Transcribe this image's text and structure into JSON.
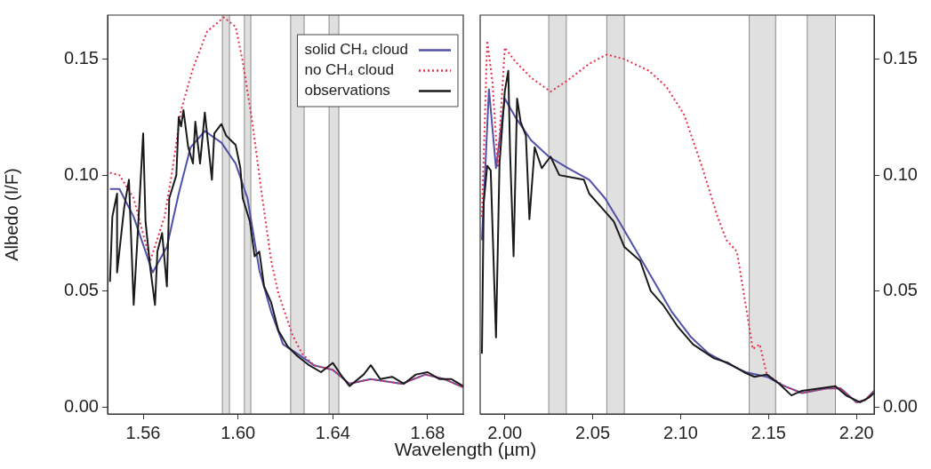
{
  "chart_data": [
    {
      "type": "line",
      "ylabel": "Albedo (I/F)",
      "xlabel": "Wavelength (µm)",
      "legend": "top right",
      "xlim": [
        1.545,
        1.695
      ],
      "xticks": [
        {
          "value": 1.56,
          "label": "1.56"
        },
        {
          "value": 1.6,
          "label": "1.60"
        },
        {
          "value": 1.64,
          "label": "1.64"
        },
        {
          "value": 1.68,
          "label": "1.68"
        }
      ],
      "ylim": [
        -0.003,
        0.169
      ],
      "yticks": [
        {
          "value": 0,
          "label": "0.00"
        },
        {
          "value": 0.05,
          "label": "0.05"
        },
        {
          "value": 0.1,
          "label": "0.10"
        },
        {
          "value": 0.15,
          "label": "0.15"
        }
      ],
      "bands": [
        {
          "axis": "x",
          "from": 1.5934,
          "to": 1.5964,
          "color": "#e0e0e0"
        },
        {
          "axis": "x",
          "from": 1.6027,
          "to": 1.6054,
          "color": "#e0e0e0"
        },
        {
          "axis": "x",
          "from": 1.6222,
          "to": 1.6279,
          "color": "#e0e0e0"
        },
        {
          "axis": "x",
          "from": 1.6384,
          "to": 1.6425,
          "color": "#e0e0e0"
        }
      ],
      "series": [
        {
          "name": "observations",
          "color": "#1a1a1a",
          "line_style": "solid",
          "x": [
            1.546,
            1.547,
            1.549,
            1.549,
            1.552,
            1.554,
            1.556,
            1.558,
            1.56,
            1.561,
            1.563,
            1.565,
            1.566,
            1.568,
            1.57,
            1.571,
            1.574,
            1.575,
            1.576,
            1.577,
            1.579,
            1.581,
            1.582,
            1.584,
            1.586,
            1.589,
            1.59,
            1.593,
            1.595,
            1.597,
            1.599,
            1.601,
            1.602,
            1.605,
            1.607,
            1.609,
            1.611,
            1.614,
            1.617,
            1.621,
            1.625,
            1.63,
            1.635,
            1.64,
            1.644,
            1.647,
            1.653,
            1.656,
            1.66,
            1.665,
            1.67,
            1.675,
            1.68,
            1.685,
            1.69,
            1.695
          ],
          "values": [
            0.054,
            0.082,
            0.092,
            0.058,
            0.086,
            0.098,
            0.044,
            0.08,
            0.118,
            0.08,
            0.06,
            0.044,
            0.067,
            0.075,
            0.052,
            0.09,
            0.1,
            0.125,
            0.121,
            0.128,
            0.112,
            0.105,
            0.123,
            0.105,
            0.127,
            0.098,
            0.118,
            0.122,
            0.117,
            0.115,
            0.113,
            0.103,
            0.09,
            0.08,
            0.065,
            0.067,
            0.052,
            0.045,
            0.033,
            0.026,
            0.022,
            0.018,
            0.015,
            0.019,
            0.013,
            0.009,
            0.014,
            0.018,
            0.012,
            0.013,
            0.01,
            0.014,
            0.015,
            0.012,
            0.012,
            0.009
          ]
        },
        {
          "name": "no CH₄ cloud",
          "color": "#e8304a",
          "line_style": "dotted",
          "x": [
            1.546,
            1.55,
            1.556,
            1.563,
            1.569,
            1.572,
            1.576,
            1.581,
            1.587,
            1.594,
            1.599,
            1.602,
            1.606,
            1.61,
            1.614,
            1.617,
            1.623,
            1.627,
            1.632,
            1.64,
            1.647,
            1.656,
            1.669,
            1.679,
            1.687,
            1.695
          ],
          "values": [
            0.101,
            0.1,
            0.09,
            0.063,
            0.082,
            0.1,
            0.128,
            0.146,
            0.162,
            0.168,
            0.164,
            0.149,
            0.123,
            0.092,
            0.063,
            0.049,
            0.031,
            0.023,
            0.018,
            0.016,
            0.01,
            0.012,
            0.01,
            0.014,
            0.012,
            0.0085
          ]
        },
        {
          "name": "solid CH₄ cloud",
          "color": "#5050a8",
          "line_style": "solid",
          "x": [
            1.546,
            1.55,
            1.556,
            1.564,
            1.57,
            1.575,
            1.58,
            1.586,
            1.593,
            1.599,
            1.604,
            1.609,
            1.614,
            1.619,
            1.625,
            1.632,
            1.64,
            1.647,
            1.656,
            1.669,
            1.679,
            1.687,
            1.695
          ],
          "values": [
            0.094,
            0.094,
            0.082,
            0.058,
            0.069,
            0.092,
            0.112,
            0.119,
            0.114,
            0.105,
            0.09,
            0.059,
            0.041,
            0.027,
            0.023,
            0.018,
            0.016,
            0.01,
            0.012,
            0.01,
            0.014,
            0.012,
            0.0085
          ]
        }
      ]
    },
    {
      "type": "line",
      "xlim": [
        1.986,
        2.21
      ],
      "xticks": [
        {
          "value": 2,
          "label": "2.00"
        },
        {
          "value": 2.05,
          "label": "2.05"
        },
        {
          "value": 2.1,
          "label": "2.10"
        },
        {
          "value": 2.15,
          "label": "2.15"
        },
        {
          "value": 2.2,
          "label": "2.20"
        }
      ],
      "ylim": [
        -0.003,
        0.169
      ],
      "yticks": [
        {
          "value": 0,
          "label": "0.00"
        },
        {
          "value": 0.05,
          "label": "0.05"
        },
        {
          "value": 0.1,
          "label": "0.10"
        },
        {
          "value": 0.15,
          "label": "0.15"
        }
      ],
      "bands": [
        {
          "axis": "x",
          "from": 2.025,
          "to": 2.035,
          "color": "#e0e0e0"
        },
        {
          "axis": "x",
          "from": 2.058,
          "to": 2.068,
          "color": "#e0e0e0"
        },
        {
          "axis": "x",
          "from": 2.139,
          "to": 2.154,
          "color": "#e0e0e0"
        },
        {
          "axis": "x",
          "from": 2.172,
          "to": 2.188,
          "color": "#e0e0e0"
        }
      ],
      "series": [
        {
          "color": "#1a1a1a",
          "line_style": "solid",
          "x": [
            1.987,
            1.988,
            1.99,
            1.992,
            1.995,
            1.997,
            2.0,
            2.002,
            2.003,
            2.005,
            2.007,
            2.009,
            2.012,
            2.014,
            2.017,
            2.021,
            2.026,
            2.031,
            2.038,
            2.045,
            2.048,
            2.055,
            2.062,
            2.068,
            2.077,
            2.083,
            2.09,
            2.098,
            2.107,
            2.119,
            2.127,
            2.136,
            2.142,
            2.149,
            2.156,
            2.163,
            2.169,
            2.179,
            2.188,
            2.194,
            2.202,
            2.207,
            2.21
          ],
          "values": [
            0.023,
            0.088,
            0.104,
            0.102,
            0.03,
            0.105,
            0.136,
            0.145,
            0.11,
            0.065,
            0.133,
            0.123,
            0.117,
            0.081,
            0.112,
            0.103,
            0.108,
            0.1,
            0.099,
            0.098,
            0.092,
            0.086,
            0.08,
            0.069,
            0.063,
            0.05,
            0.044,
            0.035,
            0.027,
            0.021,
            0.019,
            0.015,
            0.013,
            0.014,
            0.01,
            0.005,
            0.007,
            0.008,
            0.009,
            0.005,
            0.002,
            0.004,
            0.006
          ]
        },
        {
          "color": "#e8304a",
          "line_style": "dotted",
          "x": [
            1.987,
            1.99,
            1.993,
            1.996,
            2.0,
            2.006,
            2.015,
            2.026,
            2.036,
            2.048,
            2.058,
            2.068,
            2.082,
            2.092,
            2.102,
            2.112,
            2.121,
            2.126,
            2.132,
            2.137,
            2.141,
            2.145,
            2.149,
            2.159,
            2.169,
            2.183,
            2.191,
            2.2,
            2.205,
            2.21
          ],
          "values": [
            0.082,
            0.158,
            0.14,
            0.104,
            0.155,
            0.149,
            0.142,
            0.136,
            0.141,
            0.148,
            0.152,
            0.15,
            0.145,
            0.138,
            0.126,
            0.104,
            0.082,
            0.072,
            0.067,
            0.044,
            0.025,
            0.027,
            0.014,
            0.009,
            0.006,
            0.008,
            0.008,
            0.002,
            0.003,
            0.007
          ]
        },
        {
          "color": "#5050a8",
          "line_style": "solid",
          "x": [
            1.987,
            1.991,
            1.995,
            2.0,
            2.006,
            2.015,
            2.025,
            2.036,
            2.048,
            2.057,
            2.065,
            2.075,
            2.085,
            2.095,
            2.106,
            2.116,
            2.126,
            2.137,
            2.149,
            2.159,
            2.169,
            2.183,
            2.191,
            2.2,
            2.205,
            2.21
          ],
          "values": [
            0.072,
            0.137,
            0.103,
            0.133,
            0.125,
            0.115,
            0.108,
            0.103,
            0.098,
            0.09,
            0.08,
            0.067,
            0.054,
            0.041,
            0.03,
            0.023,
            0.019,
            0.015,
            0.013,
            0.009,
            0.006,
            0.008,
            0.008,
            0.002,
            0.003,
            0.007
          ]
        }
      ]
    }
  ]
}
